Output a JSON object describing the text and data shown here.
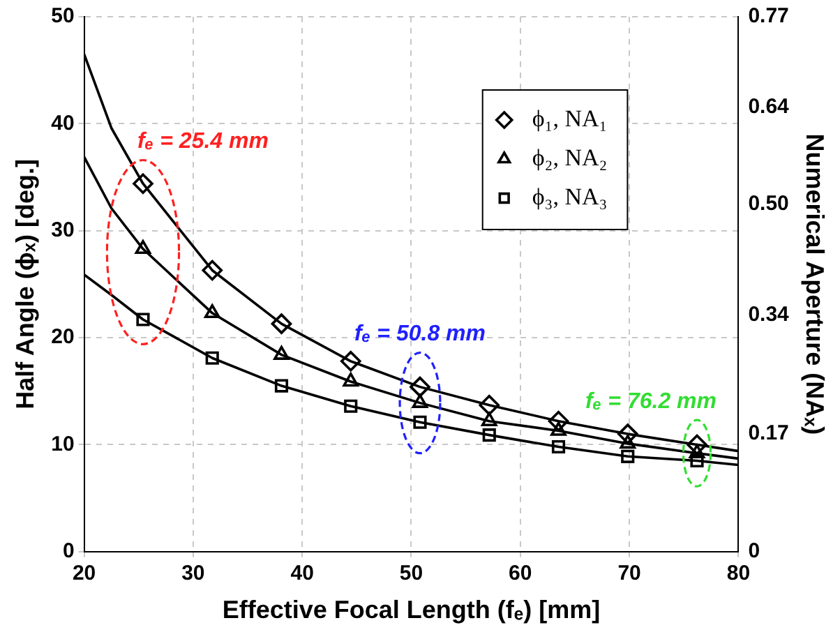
{
  "chart_data": {
    "type": "scatter",
    "xlabel": "Effective Focal Length (fₑ) [mm]",
    "ylabel": "Half Angle (ϕₓ) [deg.]",
    "y2label": "Numerical Aperture (NAₓ)",
    "xlim": [
      20,
      80
    ],
    "xticks": [
      20,
      30,
      40,
      50,
      60,
      70,
      80
    ],
    "ylim": [
      0,
      50
    ],
    "yticks": [
      0,
      10,
      20,
      30,
      40,
      50
    ],
    "y2lim": [
      0,
      0.77
    ],
    "y2ticks": [
      0,
      0.17,
      0.34,
      {
        "value": 0.5,
        "label": "0.50"
      },
      0.64,
      0.77
    ],
    "grid": true,
    "legend": "top right",
    "line_style": "solid",
    "series": [
      {
        "name": "ϕ₁, NA₁",
        "marker": "diamond",
        "color": "#000000",
        "x": [
          25.4,
          31.75,
          38.1,
          44.45,
          50.8,
          57.15,
          63.5,
          69.85,
          76.2
        ],
        "values": [
          34.4,
          26.3,
          21.3,
          17.8,
          15.4,
          13.7,
          12.2,
          11.0,
          10.0
        ]
      },
      {
        "name": "ϕ₂, NA₂",
        "marker": "triangle",
        "color": "#000000",
        "x": [
          25.4,
          31.75,
          38.1,
          44.45,
          50.8,
          57.15,
          63.5,
          69.85,
          76.2
        ],
        "values": [
          28.3,
          22.3,
          18.4,
          15.9,
          13.9,
          12.2,
          11.3,
          10.1,
          9.2
        ]
      },
      {
        "name": "ϕ₃, NA₃",
        "marker": "square",
        "color": "#000000",
        "x": [
          25.4,
          31.75,
          38.1,
          44.45,
          50.8,
          57.15,
          63.5,
          69.85,
          76.2
        ],
        "values": [
          21.7,
          18.1,
          15.5,
          13.6,
          12.1,
          10.9,
          9.8,
          8.9,
          8.5
        ]
      },
      {
        "type": "line",
        "marker": "none",
        "color": "#000000",
        "x": [
          20,
          22.5,
          25.4,
          31.75,
          38.1,
          44.45,
          50.8,
          57.15,
          63.5,
          69.85,
          76.2,
          80
        ],
        "values": [
          46.5,
          39.6,
          34.4,
          26.3,
          21.3,
          17.8,
          15.4,
          13.7,
          12.2,
          11.0,
          10.0,
          9.4
        ]
      },
      {
        "type": "line",
        "marker": "none",
        "color": "#000000",
        "x": [
          20,
          22.5,
          25.4,
          31.75,
          38.1,
          44.45,
          50.8,
          57.15,
          63.5,
          69.85,
          76.2,
          80
        ],
        "values": [
          36.9,
          32.1,
          28.3,
          22.3,
          18.4,
          15.9,
          13.9,
          12.2,
          11.3,
          10.1,
          9.2,
          8.7
        ]
      },
      {
        "type": "line",
        "marker": "none",
        "color": "#000000",
        "x": [
          20,
          22.5,
          25.4,
          31.75,
          38.1,
          44.45,
          50.8,
          57.15,
          63.5,
          69.85,
          76.2,
          80
        ],
        "values": [
          25.9,
          24.0,
          21.7,
          18.1,
          15.5,
          13.6,
          12.1,
          10.9,
          9.8,
          8.9,
          8.5,
          8.1
        ]
      }
    ],
    "annotations": [
      {
        "text": "fₑ = 25.4 mm",
        "x": 25.4,
        "y": 34.4
      },
      {
        "text": "fₑ = 50.8 mm",
        "x": 50.8,
        "y": 13.9
      },
      {
        "text": "fₑ = 76.2 mm",
        "x": 76.2,
        "y": 9.2
      }
    ]
  }
}
